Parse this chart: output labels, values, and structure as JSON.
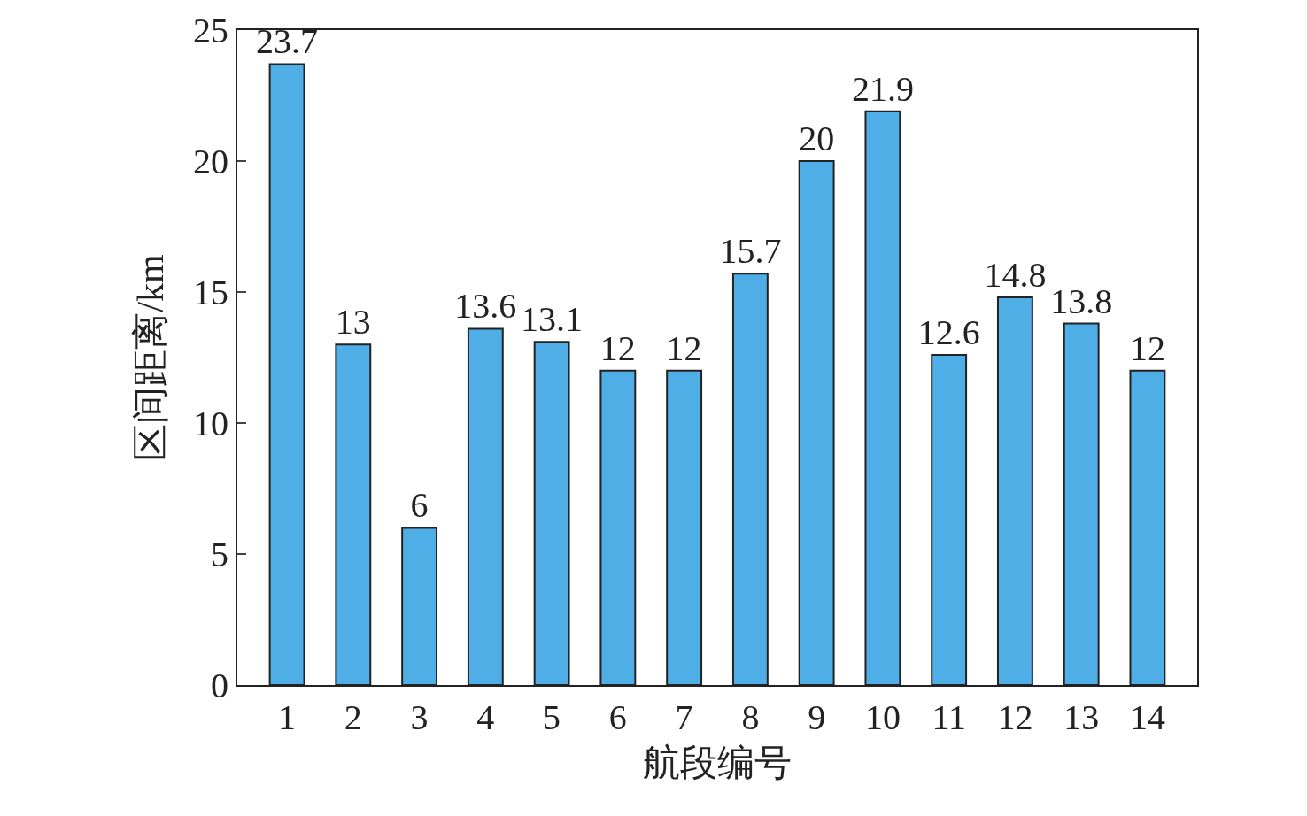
{
  "chart_data": {
    "type": "bar",
    "xlabel": "航段编号",
    "ylabel": "区间距离/km",
    "categories": [
      "1",
      "2",
      "3",
      "4",
      "5",
      "6",
      "7",
      "8",
      "9",
      "10",
      "11",
      "12",
      "13",
      "14"
    ],
    "values": [
      23.7,
      13,
      6,
      13.6,
      13.1,
      12,
      12,
      15.7,
      20,
      21.9,
      12.6,
      14.8,
      13.8,
      12
    ],
    "color": "#4faee6",
    "data_labels": true,
    "ylim": [
      0,
      25
    ],
    "yticks": [
      0,
      5,
      10,
      15,
      20,
      25
    ]
  }
}
